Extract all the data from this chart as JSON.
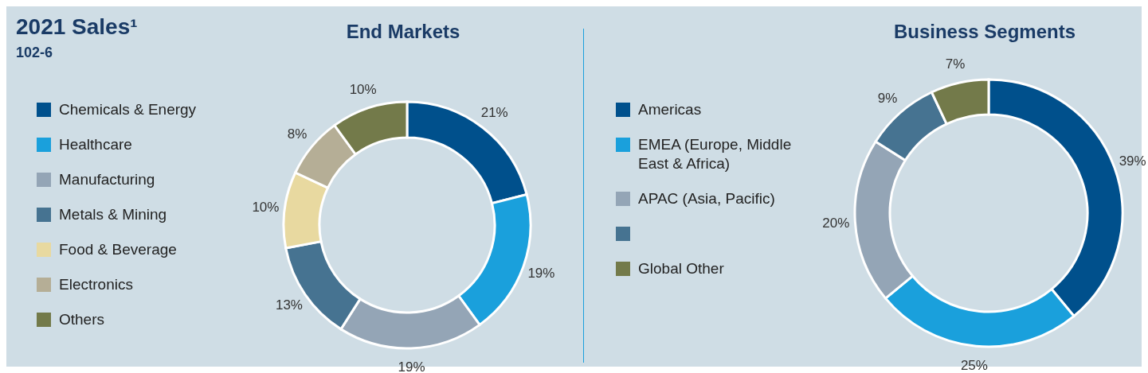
{
  "chart_data": [
    {
      "type": "donut",
      "title": "End Markets",
      "annotations": [
        "2021 Sales¹",
        "102-6"
      ],
      "legend": "left",
      "categories": [
        "Chemicals & Energy",
        "Healthcare",
        "Manufacturing",
        "Metals & Mining",
        "Food & Beverage",
        "Electronics",
        "Others"
      ],
      "values": [
        21,
        19,
        19,
        13,
        10,
        8,
        10
      ],
      "value_labels": [
        "21%",
        "19%",
        "19%",
        "13%",
        "10%",
        "8%",
        "10%"
      ],
      "colors": [
        "#00508c",
        "#1aa0dc",
        "#94a5b6",
        "#467391",
        "#e8d9a0",
        "#b5ae96",
        "#737a4a"
      ]
    },
    {
      "type": "donut",
      "title": "Business Segments",
      "legend": "left",
      "categories": [
        "Americas",
        "EMEA (Europe, Middle East & Africa)",
        "APAC (Asia, Pacific)",
        null,
        "Global Other"
      ],
      "values": [
        39,
        25,
        20,
        9,
        7
      ],
      "value_labels": [
        "39%",
        "25%",
        "20%",
        "9%",
        "7%"
      ],
      "colors": [
        "#00508c",
        "#1aa0dc",
        "#94a5b6",
        "#467391",
        "#737a4a"
      ]
    }
  ]
}
